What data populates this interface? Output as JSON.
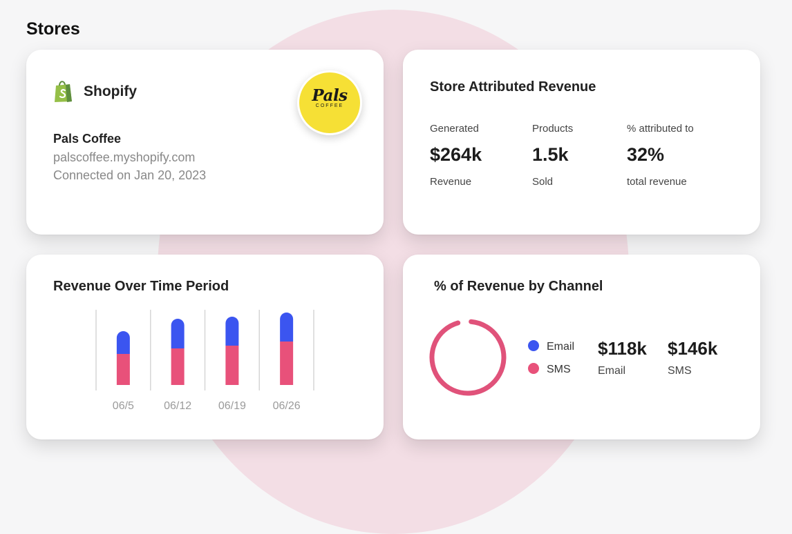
{
  "page_title": "Stores",
  "store_card": {
    "platform": "Shopify",
    "platform_icon": "shopify-bag-icon",
    "logo_text": "Pals",
    "logo_subtext": "COFFEE",
    "name": "Pals Coffee",
    "domain": "palscoffee.myshopify.com",
    "connected": "Connected on Jan 20, 2023"
  },
  "attributed_revenue": {
    "title": "Store Attributed Revenue",
    "metrics": [
      {
        "label": "Generated",
        "value": "$264k",
        "sub": "Revenue"
      },
      {
        "label": "Products",
        "value": "1.5k",
        "sub": "Sold"
      },
      {
        "label": "% attributed to",
        "value": "32%",
        "sub": "total revenue"
      }
    ]
  },
  "revenue_over_time": {
    "title": "Revenue Over Time Period"
  },
  "channel_revenue": {
    "title": "% of Revenue by Channel",
    "legend": [
      {
        "label": "Email",
        "color": "#3b55f0"
      },
      {
        "label": "SMS",
        "color": "#e8517a"
      }
    ],
    "values": [
      {
        "value": "$118k",
        "label": "Email"
      },
      {
        "value": "$146k",
        "label": "SMS"
      }
    ],
    "donut_fill_fraction": 0.97,
    "donut_color": "#e0527a"
  },
  "chart_data": {
    "type": "bar",
    "stacked": true,
    "categories": [
      "06/5",
      "06/12",
      "06/19",
      "06/26"
    ],
    "series": [
      {
        "color": "#e8517a",
        "values": [
          45,
          53,
          57,
          63
        ]
      },
      {
        "color": "#3b55f0",
        "values": [
          33,
          43,
          42,
          42
        ]
      }
    ],
    "ylim": [
      0,
      110
    ],
    "grid": "vertical separators"
  }
}
